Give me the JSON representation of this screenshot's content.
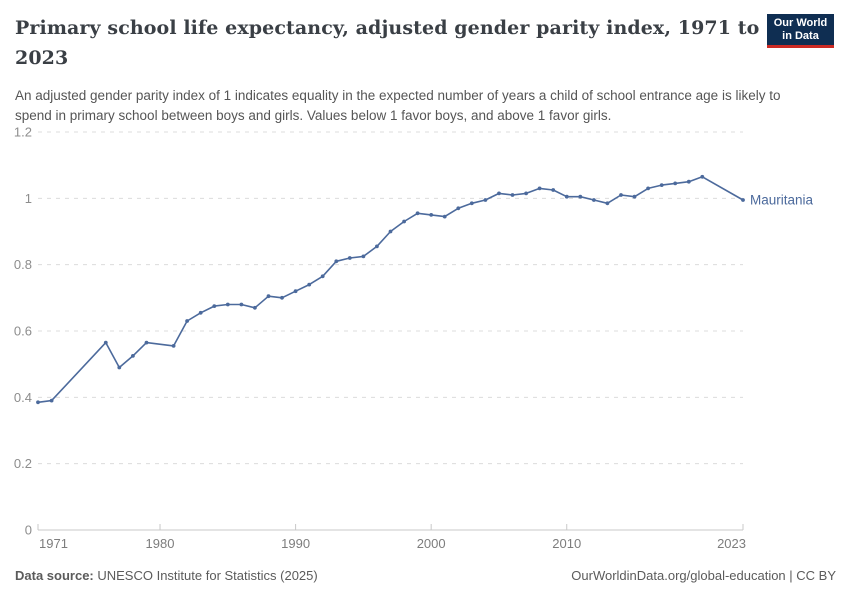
{
  "header": {
    "title": "Primary school life expectancy, adjusted gender parity index, 1971 to 2023",
    "subtitle": "An adjusted gender parity index of 1 indicates equality in the expected number of years a child of school entrance age is likely to spend in primary school between boys and girls. Values below 1 favor boys, and above 1 favor girls.",
    "logo": {
      "line1": "Our World",
      "line2": "in Data",
      "bg_color": "#0f2e52",
      "accent_color": "#cc2a24"
    }
  },
  "footer": {
    "source_label": "Data source:",
    "source_text": " UNESCO Institute for Statistics (2025)",
    "credit": "OurWorldinData.org/global-education | CC BY"
  },
  "chart_data": {
    "type": "line",
    "title": "Primary school life expectancy, adjusted gender parity index, 1971 to 2023",
    "entity_label": "Mauritania",
    "line_color": "#4C6A9C",
    "grid": "horizontal-dashed",
    "legend_position": "end-of-line-label",
    "xlabel": "",
    "ylabel": "",
    "xlim": [
      1971,
      2023
    ],
    "ylim": [
      0,
      1.2
    ],
    "x_ticks": [
      {
        "value": 1971,
        "label": "1971",
        "anchor": "start"
      },
      {
        "value": 1980,
        "label": "1980",
        "anchor": "middle"
      },
      {
        "value": 1990,
        "label": "1990",
        "anchor": "middle"
      },
      {
        "value": 2000,
        "label": "2000",
        "anchor": "middle"
      },
      {
        "value": 2010,
        "label": "2010",
        "anchor": "middle"
      },
      {
        "value": 2023,
        "label": "2023",
        "anchor": "end"
      }
    ],
    "y_ticks": [
      {
        "value": 0,
        "label": "0"
      },
      {
        "value": 0.2,
        "label": "0.2"
      },
      {
        "value": 0.4,
        "label": "0.4"
      },
      {
        "value": 0.6,
        "label": "0.6"
      },
      {
        "value": 0.8,
        "label": "0.8"
      },
      {
        "value": 1,
        "label": "1"
      },
      {
        "value": 1.2,
        "label": "1.2"
      }
    ],
    "points": [
      [
        1971,
        0.385
      ],
      [
        1972,
        0.39
      ],
      [
        1976,
        0.565
      ],
      [
        1977,
        0.49
      ],
      [
        1978,
        0.525
      ],
      [
        1979,
        0.565
      ],
      [
        1981,
        0.555
      ],
      [
        1982,
        0.63
      ],
      [
        1983,
        0.655
      ],
      [
        1984,
        0.675
      ],
      [
        1985,
        0.68
      ],
      [
        1986,
        0.68
      ],
      [
        1987,
        0.67
      ],
      [
        1988,
        0.705
      ],
      [
        1989,
        0.7
      ],
      [
        1990,
        0.72
      ],
      [
        1991,
        0.74
      ],
      [
        1992,
        0.765
      ],
      [
        1993,
        0.81
      ],
      [
        1994,
        0.82
      ],
      [
        1995,
        0.825
      ],
      [
        1996,
        0.855
      ],
      [
        1997,
        0.9
      ],
      [
        1998,
        0.93
      ],
      [
        1999,
        0.955
      ],
      [
        2000,
        0.95
      ],
      [
        2001,
        0.945
      ],
      [
        2002,
        0.97
      ],
      [
        2003,
        0.985
      ],
      [
        2004,
        0.995
      ],
      [
        2005,
        1.015
      ],
      [
        2006,
        1.01
      ],
      [
        2007,
        1.015
      ],
      [
        2008,
        1.03
      ],
      [
        2009,
        1.025
      ],
      [
        2010,
        1.005
      ],
      [
        2011,
        1.005
      ],
      [
        2012,
        0.995
      ],
      [
        2013,
        0.985
      ],
      [
        2014,
        1.01
      ],
      [
        2015,
        1.005
      ],
      [
        2016,
        1.03
      ],
      [
        2017,
        1.04
      ],
      [
        2018,
        1.045
      ],
      [
        2019,
        1.05
      ],
      [
        2020,
        1.065
      ],
      [
        2023,
        0.995
      ]
    ]
  }
}
